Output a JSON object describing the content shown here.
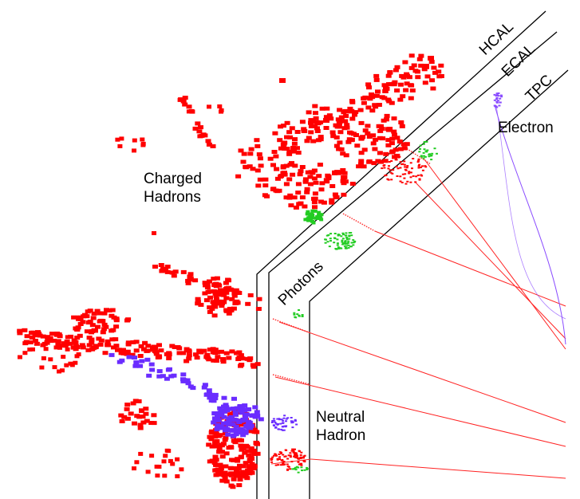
{
  "layers": [
    {
      "key": "hcal",
      "label": "HCAL"
    },
    {
      "key": "ecal",
      "label": "ECAL"
    },
    {
      "key": "tpc",
      "label": "TPC"
    }
  ],
  "particles": {
    "charged_hadrons": {
      "line1": "Charged",
      "line2": "Hadrons"
    },
    "photons": {
      "label": "Photons"
    },
    "electron": {
      "label": "Electron"
    },
    "neutral_hadron": {
      "line1": "Neutral",
      "line2": "Hadron"
    }
  },
  "colors": {
    "charged_hadron": "#ff0000",
    "photon": "#22cc22",
    "neutral_hadron": "#6a2cff",
    "electron": "#8a4cff",
    "boundary": "#000000"
  }
}
